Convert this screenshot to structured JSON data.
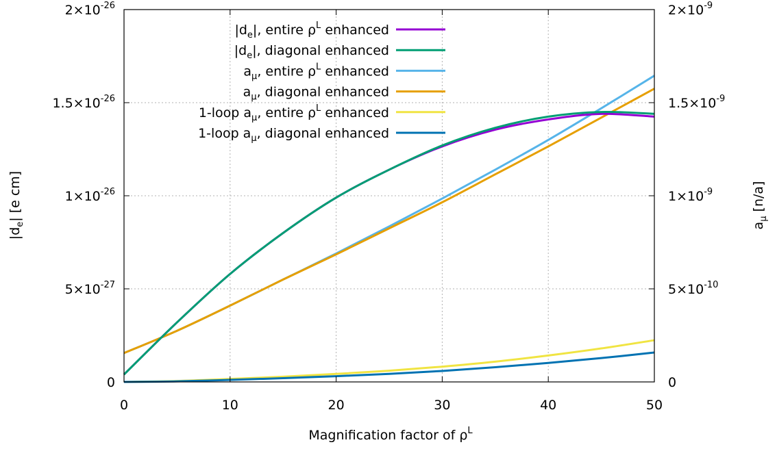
{
  "chart_data": {
    "type": "line",
    "xlabel": {
      "base": "Magnification factor of ρ",
      "sup": "L"
    },
    "ylabel_left": {
      "base": "|d",
      "sub": "e",
      "rest": "| [e cm]"
    },
    "ylabel_right": {
      "base": "a",
      "sub": "μ",
      "rest": " [n/a]"
    },
    "xlim": [
      0,
      50
    ],
    "ylim_left": [
      0,
      2e-26
    ],
    "ylim_right": [
      0,
      2e-09
    ],
    "grid": true,
    "legend_position": "top-left",
    "x_ticks": [
      "0",
      "10",
      "20",
      "30",
      "40",
      "50"
    ],
    "y_left_ticks": [
      {
        "value": 0,
        "mant": "0",
        "exp": ""
      },
      {
        "value": 5e-27,
        "mant": "5×10",
        "exp": "-27"
      },
      {
        "value": 1e-26,
        "mant": "1×10",
        "exp": "-26"
      },
      {
        "value": 1.5e-26,
        "mant": "1.5×10",
        "exp": "-26"
      },
      {
        "value": 2e-26,
        "mant": "2×10",
        "exp": "-26"
      }
    ],
    "y_right_ticks": [
      {
        "value": 0,
        "mant": "0",
        "exp": ""
      },
      {
        "value": 5e-10,
        "mant": "5×10",
        "exp": "-10"
      },
      {
        "value": 1e-09,
        "mant": "1×10",
        "exp": "-9"
      },
      {
        "value": 1.5e-09,
        "mant": "1.5×10",
        "exp": "-9"
      },
      {
        "value": 2e-09,
        "mant": "2×10",
        "exp": "-9"
      }
    ],
    "series": [
      {
        "name": "|de|, entire ρL enhanced",
        "legend": {
          "a": "|d",
          "sub": "e",
          "b": "|, entire ρ",
          "sup": "L",
          "c": " enhanced"
        },
        "axis": "left",
        "color": "#9400d3",
        "x": [
          0,
          5,
          10,
          15,
          20,
          25,
          30,
          35,
          40,
          45,
          50
        ],
        "y": [
          4e-28,
          3.2e-27,
          5.8e-27,
          8e-27,
          9.9e-27,
          1.14e-26,
          1.265e-26,
          1.355e-26,
          1.41e-26,
          1.44e-26,
          1.425e-26
        ]
      },
      {
        "name": "|de|, diagonal enhanced",
        "legend": {
          "a": "|d",
          "sub": "e",
          "b": "|, diagonal enhanced",
          "sup": "",
          "c": ""
        },
        "axis": "left",
        "color": "#009e73",
        "x": [
          0,
          5,
          10,
          15,
          20,
          25,
          30,
          35,
          40,
          45,
          50
        ],
        "y": [
          4e-28,
          3.2e-27,
          5.8e-27,
          8e-27,
          9.9e-27,
          1.14e-26,
          1.27e-26,
          1.365e-26,
          1.425e-26,
          1.45e-26,
          1.44e-26
        ]
      },
      {
        "name": "aμ, entire ρL enhanced",
        "legend": {
          "a": "a",
          "sub": "μ",
          "b": ", entire ρ",
          "sup": "L",
          "c": " enhanced"
        },
        "axis": "right",
        "color": "#56b4e9",
        "x": [
          0,
          5,
          10,
          15,
          20,
          25,
          30,
          35,
          40,
          45,
          50
        ],
        "y": [
          1.55e-10,
          2.75e-10,
          4.1e-10,
          5.5e-10,
          6.9e-10,
          8.35e-10,
          9.85e-10,
          1.14e-09,
          1.3e-09,
          1.47e-09,
          1.645e-09
        ]
      },
      {
        "name": "aμ, diagonal enhanced",
        "legend": {
          "a": "a",
          "sub": "μ",
          "b": ", diagonal enhanced",
          "sup": "",
          "c": ""
        },
        "axis": "right",
        "color": "#e69f00",
        "x": [
          0,
          5,
          10,
          15,
          20,
          25,
          30,
          35,
          40,
          45,
          50
        ],
        "y": [
          1.55e-10,
          2.75e-10,
          4.1e-10,
          5.5e-10,
          6.85e-10,
          8.25e-10,
          9.65e-10,
          1.115e-09,
          1.265e-09,
          1.42e-09,
          1.575e-09
        ]
      },
      {
        "name": "1-loop aμ, entire ρL enhanced",
        "legend": {
          "a": "1-loop a",
          "sub": "μ",
          "b": ", entire ρ",
          "sup": "L",
          "c": " enhanced"
        },
        "axis": "right",
        "color": "#f0e442",
        "x": [
          0,
          5,
          10,
          15,
          20,
          25,
          30,
          35,
          40,
          45,
          50
        ],
        "y": [
          0,
          5e-12,
          1.6e-11,
          2.8e-11,
          4.3e-11,
          6e-11,
          8.2e-11,
          1.09e-10,
          1.42e-10,
          1.8e-10,
          2.24e-10
        ]
      },
      {
        "name": "1-loop aμ, diagonal enhanced",
        "legend": {
          "a": "1-loop a",
          "sub": "μ",
          "b": ", diagonal enhanced",
          "sup": "",
          "c": ""
        },
        "axis": "right",
        "color": "#0072b2",
        "x": [
          0,
          5,
          10,
          15,
          20,
          25,
          30,
          35,
          40,
          45,
          50
        ],
        "y": [
          0,
          3e-12,
          1.1e-11,
          2e-11,
          3.1e-11,
          4.3e-11,
          5.9e-11,
          7.9e-11,
          1.02e-10,
          1.28e-10,
          1.58e-10
        ]
      }
    ]
  }
}
